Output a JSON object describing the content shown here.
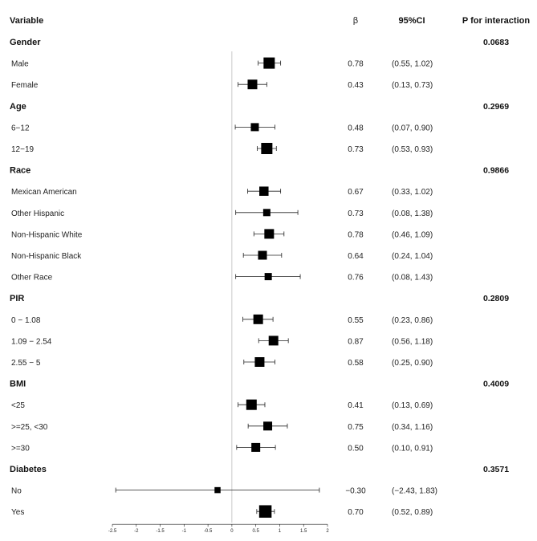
{
  "chart_data": {
    "type": "forest",
    "header": {
      "variable": "Variable",
      "beta": "β",
      "ci": "95%CI",
      "p": "P for interaction"
    },
    "x_axis": {
      "xlim": [
        -2.5,
        2
      ],
      "ticks": [
        "-2.5",
        "-2",
        "-1.5",
        "-1",
        "-0.5",
        "0",
        "0.5",
        "1",
        "1.5",
        "2"
      ],
      "reference_line": 0
    },
    "groups": [
      {
        "name": "Gender",
        "p": "0.0683",
        "rows": [
          {
            "label": "Male",
            "beta": 0.78,
            "lo": 0.55,
            "hi": 1.02,
            "beta_text": "0.78",
            "ci_text": "(0.55, 1.02)",
            "weight": 1.0
          },
          {
            "label": "Female",
            "beta": 0.43,
            "lo": 0.13,
            "hi": 0.73,
            "beta_text": "0.43",
            "ci_text": "(0.13, 0.73)",
            "weight": 0.8
          }
        ]
      },
      {
        "name": "Age",
        "p": "0.2969",
        "rows": [
          {
            "label": "6−12",
            "beta": 0.48,
            "lo": 0.07,
            "hi": 0.9,
            "beta_text": "0.48",
            "ci_text": "(0.07, 0.90)",
            "weight": 0.6
          },
          {
            "label": "12−19",
            "beta": 0.73,
            "lo": 0.53,
            "hi": 0.93,
            "beta_text": "0.73",
            "ci_text": "(0.53, 0.93)",
            "weight": 1.0
          }
        ]
      },
      {
        "name": "Race",
        "p": "0.9866",
        "rows": [
          {
            "label": "Mexican American",
            "beta": 0.67,
            "lo": 0.33,
            "hi": 1.02,
            "beta_text": "0.67",
            "ci_text": "(0.33, 1.02)",
            "weight": 0.75
          },
          {
            "label": "Other Hispanic",
            "beta": 0.73,
            "lo": 0.08,
            "hi": 1.38,
            "beta_text": "0.73",
            "ci_text": "(0.08, 1.38)",
            "weight": 0.5
          },
          {
            "label": "Non-Hispanic White",
            "beta": 0.78,
            "lo": 0.46,
            "hi": 1.09,
            "beta_text": "0.78",
            "ci_text": "(0.46, 1.09)",
            "weight": 0.8
          },
          {
            "label": "Non-Hispanic Black",
            "beta": 0.64,
            "lo": 0.24,
            "hi": 1.04,
            "beta_text": "0.64",
            "ci_text": "(0.24, 1.04)",
            "weight": 0.7
          },
          {
            "label": "Other Race",
            "beta": 0.76,
            "lo": 0.08,
            "hi": 1.43,
            "beta_text": "0.76",
            "ci_text": "(0.08, 1.43)",
            "weight": 0.5
          }
        ]
      },
      {
        "name": "PIR",
        "p": "0.2809",
        "rows": [
          {
            "label": "0 − 1.08",
            "beta": 0.55,
            "lo": 0.23,
            "hi": 0.86,
            "beta_text": "0.55",
            "ci_text": "(0.23, 0.86)",
            "weight": 0.8
          },
          {
            "label": "1.09 − 2.54",
            "beta": 0.87,
            "lo": 0.56,
            "hi": 1.18,
            "beta_text": "0.87",
            "ci_text": "(0.56, 1.18)",
            "weight": 0.8
          },
          {
            "label": "2.55 − 5",
            "beta": 0.58,
            "lo": 0.25,
            "hi": 0.9,
            "beta_text": "0.58",
            "ci_text": "(0.25, 0.90)",
            "weight": 0.8
          }
        ]
      },
      {
        "name": "BMI",
        "p": "0.4009",
        "rows": [
          {
            "label": "<25",
            "beta": 0.41,
            "lo": 0.13,
            "hi": 0.69,
            "beta_text": "0.41",
            "ci_text": "(0.13, 0.69)",
            "weight": 0.9
          },
          {
            "label": ">=25, <30",
            "beta": 0.75,
            "lo": 0.34,
            "hi": 1.16,
            "beta_text": "0.75",
            "ci_text": "(0.34, 1.16)",
            "weight": 0.7
          },
          {
            "label": ">=30",
            "beta": 0.5,
            "lo": 0.1,
            "hi": 0.91,
            "beta_text": "0.50",
            "ci_text": "(0.10, 0.91)",
            "weight": 0.7
          }
        ]
      },
      {
        "name": "Diabetes",
        "p": "0.3571",
        "rows": [
          {
            "label": "No",
            "beta": -0.3,
            "lo": -2.43,
            "hi": 1.83,
            "beta_text": "−0.30",
            "ci_text": "(−2.43, 1.83)",
            "weight": 0.35
          },
          {
            "label": "Yes",
            "beta": 0.7,
            "lo": 0.52,
            "hi": 0.89,
            "beta_text": "0.70",
            "ci_text": "(0.52, 0.89)",
            "weight": 1.15
          }
        ]
      }
    ],
    "colors": {
      "marker": "#000000",
      "reference_line": "#bbbbbb",
      "text": "#111111"
    }
  }
}
